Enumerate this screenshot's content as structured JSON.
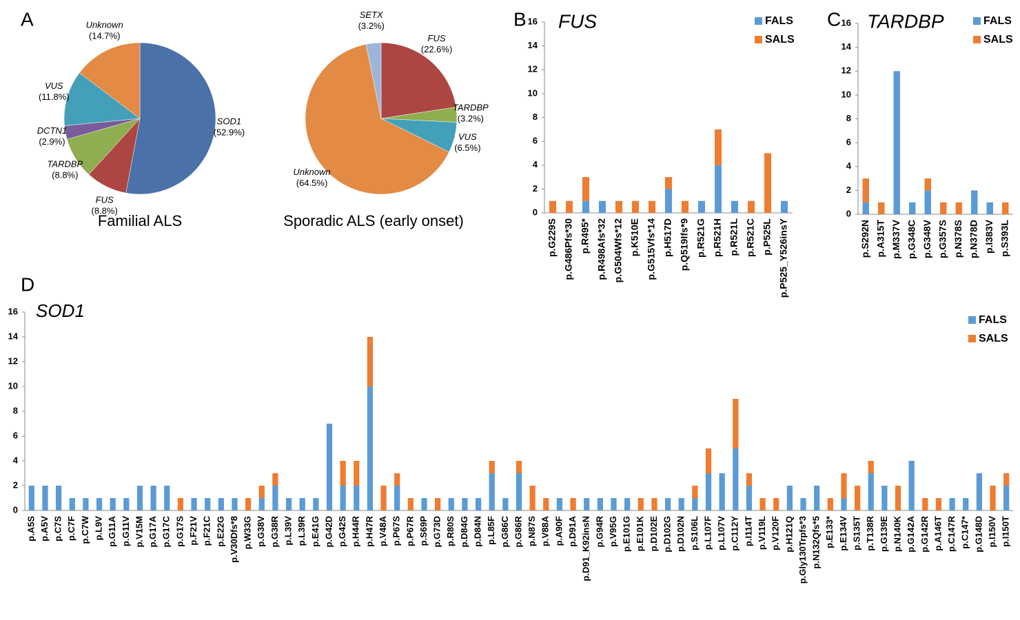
{
  "chart_data": [
    {
      "type": "pie",
      "label": "A",
      "title": "Familial ALS",
      "categories": [
        "SOD1",
        "FUS",
        "TARDBP",
        "DCTN1",
        "VUS",
        "Unknown"
      ],
      "values": [
        52.9,
        8.8,
        8.8,
        2.9,
        11.8,
        14.7
      ],
      "value_labels": [
        "(52.9%)",
        "(8.8%)",
        "(8.8%)",
        "(2.9%)",
        "(11.8%)",
        "(14.7%)"
      ],
      "colors": [
        "#4a71a8",
        "#ad4542",
        "#8fae50",
        "#7a5b9b",
        "#44a0b8",
        "#e38a44"
      ]
    },
    {
      "type": "pie",
      "title": "Sporadic ALS (early onset)",
      "categories": [
        "FUS",
        "TARDBP",
        "VUS",
        "Unknown",
        "SETX"
      ],
      "values": [
        22.6,
        3.2,
        6.5,
        64.5,
        3.2
      ],
      "value_labels": [
        "(22.6%)",
        "(3.2%)",
        "(6.5%)",
        "(64.5%)",
        "(3.2%)"
      ],
      "colors": [
        "#ad4542",
        "#8fae50",
        "#44a0b8",
        "#e38a44",
        "#9db5da"
      ]
    },
    {
      "type": "bar",
      "stacked": true,
      "label": "B",
      "title": "FUS",
      "categories": [
        "p.G229S",
        "p.G486Pfs*30",
        "p.R495*",
        "p.R498Afs*32",
        "p.G504Wfs*12",
        "p.K510E",
        "p.G515Vfs*14",
        "p.H517D",
        "p.Q519Ifs*9",
        "p.R521G",
        "p.R521H",
        "p.R521L",
        "p.R521C",
        "p.P525L",
        "p.P525_Y526insY"
      ],
      "series": [
        {
          "name": "FALS",
          "color": "#5b9bd5",
          "values": [
            0,
            0,
            1,
            1,
            0,
            0,
            0,
            2,
            0,
            1,
            4,
            1,
            0,
            0,
            1
          ]
        },
        {
          "name": "SALS",
          "color": "#ed7d31",
          "values": [
            1,
            1,
            2,
            0,
            1,
            1,
            1,
            1,
            1,
            0,
            3,
            0,
            1,
            5,
            0
          ]
        }
      ],
      "ylim": [
        0,
        16
      ],
      "yticks": [
        0,
        2,
        4,
        6,
        8,
        10,
        12,
        14,
        16
      ],
      "legend": "upper right"
    },
    {
      "type": "bar",
      "stacked": true,
      "label": "C",
      "title": "TARDBP",
      "categories": [
        "p.S292N",
        "p.A315T",
        "p.M337V",
        "p.G348C",
        "p.G348V",
        "p.G357S",
        "p.N378S",
        "p.N378D",
        "p.I383V",
        "p.S393L"
      ],
      "series": [
        {
          "name": "FALS",
          "color": "#5b9bd5",
          "values": [
            1,
            0,
            12,
            1,
            2,
            0,
            0,
            2,
            1,
            0
          ]
        },
        {
          "name": "SALS",
          "color": "#ed7d31",
          "values": [
            2,
            1,
            0,
            0,
            1,
            1,
            1,
            0,
            0,
            1
          ]
        }
      ],
      "ylim": [
        0,
        16
      ],
      "yticks": [
        0,
        2,
        4,
        6,
        8,
        10,
        12,
        14,
        16
      ],
      "legend": "upper right"
    },
    {
      "type": "bar",
      "stacked": true,
      "label": "D",
      "title": "SOD1",
      "categories": [
        "p.A5S",
        "p.A5V",
        "p.C7S",
        "p.C7F",
        "p.C7W",
        "p.L9V",
        "p.G11A",
        "p.G11V",
        "p.V15M",
        "p.G17A",
        "p.G17C",
        "p.G17S",
        "p.F21V",
        "p.F21C",
        "p.E22G",
        "p.V30Dfs*8",
        "p.W33G",
        "p.G38V",
        "p.G38R",
        "p.L39V",
        "p.L39R",
        "p.E41G",
        "p.G42D",
        "p.G42S",
        "p.H44R",
        "p.H47R",
        "p.V48A",
        "p.P67S",
        "p.P67R",
        "p.S69P",
        "p.G73D",
        "p.R80S",
        "p.D84G",
        "p.D84N",
        "p.L85F",
        "p.G86C",
        "p.G86R",
        "p.N87S",
        "p.V88A",
        "p.A90F",
        "p.D91A",
        "p.D91_K92insN",
        "p.G94R",
        "p.V95G",
        "p.E101G",
        "p.E101K",
        "p.D102E",
        "p.D102G",
        "p.D102N",
        "p.S106L",
        "p.L107F",
        "p.L107V",
        "p.C112Y",
        "p.I114T",
        "p.V119L",
        "p.V120F",
        "p.H121Q",
        "p.Gly130Trpfs*3",
        "p.N132Qfs*5",
        "p.E133*",
        "p.E134V",
        "p.S135T",
        "p.T138R",
        "p.G139E",
        "p.N140K",
        "p.G142A",
        "p.G142R",
        "p.A146T",
        "p.C147R",
        "p.C147*",
        "p.G148D",
        "p.I150V",
        "p.I150T"
      ],
      "series": [
        {
          "name": "FALS",
          "color": "#5b9bd5",
          "values": [
            2,
            2,
            2,
            1,
            1,
            1,
            1,
            1,
            2,
            2,
            2,
            0,
            1,
            1,
            1,
            1,
            0,
            1,
            2,
            1,
            1,
            1,
            7,
            2,
            2,
            10,
            0,
            2,
            0,
            1,
            0,
            1,
            1,
            1,
            3,
            1,
            3,
            0,
            0,
            1,
            0,
            1,
            1,
            1,
            1,
            0,
            0,
            1,
            1,
            1,
            3,
            3,
            5,
            2,
            0,
            0,
            2,
            1,
            2,
            0,
            1,
            0,
            3,
            2,
            0,
            4,
            0,
            0,
            1,
            1,
            3,
            0,
            2
          ]
        },
        {
          "name": "SALS",
          "color": "#ed7d31",
          "values": [
            0,
            0,
            0,
            0,
            0,
            0,
            0,
            0,
            0,
            0,
            0,
            1,
            0,
            0,
            0,
            0,
            1,
            1,
            1,
            0,
            0,
            0,
            0,
            2,
            2,
            4,
            2,
            1,
            1,
            0,
            1,
            0,
            0,
            0,
            1,
            0,
            1,
            2,
            1,
            0,
            1,
            0,
            0,
            0,
            0,
            1,
            1,
            0,
            0,
            1,
            2,
            0,
            4,
            1,
            1,
            1,
            0,
            0,
            0,
            1,
            2,
            2,
            1,
            0,
            2,
            0,
            1,
            1,
            0,
            0,
            0,
            2,
            1
          ]
        }
      ],
      "ylim": [
        0,
        16
      ],
      "yticks": [
        0,
        2,
        4,
        6,
        8,
        10,
        12,
        14,
        16
      ],
      "legend": "upper right"
    }
  ]
}
